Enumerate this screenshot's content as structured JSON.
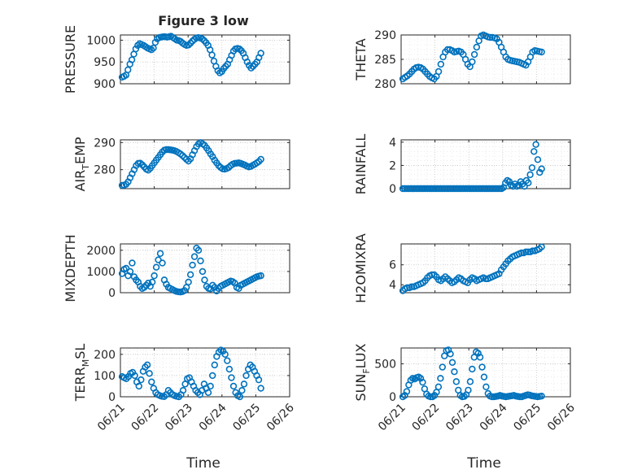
{
  "figure": {
    "title": "Figure 3 low",
    "xlabel": "Time"
  },
  "style": {
    "marker_color": "#0072BD",
    "axis_color": "#262626",
    "grid_color": "#c8c8c8"
  },
  "chart_data": [
    {
      "type": "scatter",
      "name": "PRESSURE",
      "ylabel": "PRESSURE",
      "ylabel_sub": "",
      "xlim": [
        21,
        26
      ],
      "ylim": [
        900,
        1012
      ],
      "yticks": [
        900,
        950,
        1000
      ],
      "x_ticks": [
        "06/21",
        "06/22",
        "06/23",
        "06/24",
        "06/25",
        "06/26"
      ],
      "grid": true,
      "y": [
        915,
        917,
        920,
        932,
        945,
        955,
        968,
        980,
        988,
        992,
        990,
        988,
        985,
        982,
        980,
        978,
        982,
        995,
        1003,
        1006,
        1007,
        1008,
        1008,
        1007,
        1008,
        1009,
        1006,
        1003,
        1000,
        999,
        997,
        993,
        990,
        988,
        989,
        993,
        998,
        1002,
        1005,
        1006,
        1005,
        1003,
        999,
        994,
        988,
        978,
        966,
        952,
        940,
        930,
        925,
        928,
        935,
        940,
        945,
        955,
        965,
        975,
        980,
        981,
        980,
        976,
        970,
        960,
        950,
        942,
        936,
        940,
        945,
        950,
        960,
        970
      ]
    },
    {
      "type": "scatter",
      "name": "THETA",
      "ylabel": "THETA",
      "ylabel_sub": "",
      "xlim": [
        21,
        26
      ],
      "ylim": [
        280,
        290
      ],
      "yticks": [
        280,
        285,
        290
      ],
      "x_ticks": [
        "06/21",
        "06/22",
        "06/23",
        "06/24",
        "06/25",
        "06/26"
      ],
      "grid": true,
      "y": [
        281,
        281.3,
        281.6,
        282,
        282.5,
        283,
        283.3,
        283.4,
        283.3,
        283,
        282.5,
        282,
        281.5,
        281.2,
        281,
        281.5,
        282.5,
        284,
        285.5,
        286.5,
        287,
        287,
        286.8,
        286.5,
        286.6,
        286.7,
        286.5,
        286,
        285,
        284,
        283.5,
        284.5,
        286,
        287.5,
        288.8,
        289.8,
        290,
        289.8,
        289.6,
        289.5,
        289.5,
        289.4,
        289.2,
        288.5,
        287.5,
        286.5,
        285.5,
        285,
        284.8,
        284.7,
        284.6,
        284.5,
        284.4,
        284.2,
        284,
        283.8,
        284.5,
        285.5,
        286.5,
        286.8,
        286.7,
        286.6,
        286.5
      ]
    },
    {
      "type": "scatter",
      "name": "AIR_TEMP",
      "ylabel": "AIR",
      "ylabel_sub": "T",
      "ylabel_tail": "EMP",
      "xlim": [
        21,
        26
      ],
      "ylim": [
        273,
        291
      ],
      "yticks": [
        280,
        290
      ],
      "x_ticks": [
        "06/21",
        "06/22",
        "06/23",
        "06/24",
        "06/25",
        "06/26"
      ],
      "grid": true,
      "y": [
        274.2,
        274.3,
        274.6,
        275.5,
        277,
        278.5,
        280,
        281.5,
        282.3,
        282.4,
        281.8,
        281,
        280.2,
        279.8,
        280.5,
        281.5,
        282.5,
        283.5,
        284.5,
        285.5,
        286.5,
        287.2,
        287.4,
        287.4,
        287.3,
        287.2,
        287,
        286.7,
        286.3,
        285.8,
        285.2,
        284.5,
        283.8,
        283.2,
        284,
        285.5,
        287,
        288.5,
        289.5,
        290,
        289.5,
        289,
        288,
        287,
        285.8,
        284.8,
        283.5,
        282.5,
        281.5,
        280.8,
        280.3,
        280.2,
        280.4,
        280.8,
        281.5,
        282,
        282.3,
        282.4,
        282.5,
        282.3,
        282,
        281.7,
        281.3,
        281,
        281.2,
        281.6,
        282,
        282.5,
        283,
        283.8
      ]
    },
    {
      "type": "scatter",
      "name": "RAINFALL",
      "ylabel": "RAINFALL",
      "ylabel_sub": "",
      "xlim": [
        21,
        26
      ],
      "ylim": [
        0,
        4.2
      ],
      "yticks": [
        0,
        2,
        4
      ],
      "x_ticks": [
        "06/21",
        "06/22",
        "06/23",
        "06/24",
        "06/25",
        "06/26"
      ],
      "grid": true,
      "y": [
        0,
        0,
        0,
        0,
        0,
        0,
        0,
        0,
        0,
        0,
        0,
        0,
        0,
        0,
        0,
        0,
        0,
        0,
        0,
        0,
        0,
        0,
        0,
        0,
        0,
        0,
        0,
        0,
        0,
        0,
        0,
        0,
        0,
        0,
        0,
        0,
        0,
        0,
        0,
        0,
        0,
        0,
        0,
        0,
        0,
        0,
        0,
        0,
        0,
        0,
        0,
        0,
        0,
        0.1,
        0.5,
        0.7,
        0.6,
        0.3,
        0.2,
        0.4,
        0.2,
        0.3,
        0.6,
        0.4,
        0.2,
        0.7,
        0.5,
        1.2,
        1.8,
        3.2,
        3.8,
        2.5,
        1.4,
        1.7
      ]
    },
    {
      "type": "scatter",
      "name": "MIXDEPTH",
      "ylabel": "MIXDEPTH",
      "ylabel_sub": "",
      "xlim": [
        21,
        26
      ],
      "ylim": [
        0,
        2300
      ],
      "yticks": [
        0,
        1000,
        2000
      ],
      "x_ticks": [
        "06/21",
        "06/22",
        "06/23",
        "06/24",
        "06/25",
        "06/26"
      ],
      "grid": true,
      "y": [
        900,
        1100,
        1150,
        800,
        1000,
        1400,
        750,
        600,
        500,
        300,
        200,
        250,
        350,
        450,
        300,
        500,
        800,
        1200,
        1550,
        1850,
        1400,
        600,
        400,
        250,
        200,
        150,
        100,
        60,
        40,
        30,
        50,
        100,
        250,
        500,
        850,
        1300,
        1700,
        2100,
        2000,
        1500,
        1000,
        600,
        300,
        200,
        180,
        350,
        250,
        80,
        200,
        300,
        350,
        400,
        450,
        500,
        550,
        520,
        450,
        250,
        200,
        350,
        400,
        450,
        500,
        550,
        600,
        650,
        700,
        750,
        780,
        800
      ]
    },
    {
      "type": "scatter",
      "name": "H2OMIXRA",
      "ylabel": "H2OMIXRA",
      "ylabel_sub": "",
      "xlim": [
        21,
        26
      ],
      "ylim": [
        3.2,
        8.1
      ],
      "yticks": [
        4,
        6
      ],
      "x_ticks": [
        "06/21",
        "06/22",
        "06/23",
        "06/24",
        "06/25",
        "06/26"
      ],
      "grid": true,
      "y": [
        3.4,
        3.6,
        3.7,
        3.7,
        3.8,
        3.8,
        3.9,
        4,
        4.1,
        4.2,
        4.4,
        4.7,
        4.9,
        5,
        5,
        4.8,
        4.5,
        4.4,
        4.6,
        4.8,
        4.6,
        4.4,
        4.2,
        4.3,
        4.5,
        4.7,
        4.6,
        4.4,
        4.3,
        4.2,
        4.5,
        4.7,
        4.6,
        4.4,
        4.5,
        4.6,
        4.7,
        4.6,
        4.6,
        4.7,
        4.8,
        4.9,
        5,
        5.1,
        5.5,
        5.8,
        6.1,
        6.4,
        6.6,
        6.8,
        6.9,
        7,
        7.1,
        7.2,
        7.2,
        7.3,
        7.3,
        7.3,
        7.4,
        7.4,
        7.5,
        7.6,
        7.8
      ]
    },
    {
      "type": "scatter",
      "name": "TERR_MSL",
      "ylabel": "TERR",
      "ylabel_sub": "M",
      "ylabel_tail": "SL",
      "xlim": [
        21,
        26
      ],
      "ylim": [
        0,
        230
      ],
      "yticks": [
        0,
        100,
        200
      ],
      "x_ticks": [
        "06/21",
        "06/22",
        "06/23",
        "06/24",
        "06/25",
        "06/26"
      ],
      "grid": true,
      "y": [
        95,
        90,
        85,
        95,
        110,
        115,
        100,
        70,
        50,
        80,
        120,
        140,
        150,
        110,
        70,
        40,
        20,
        10,
        5,
        2,
        1,
        10,
        30,
        20,
        10,
        5,
        2,
        0,
        10,
        30,
        60,
        85,
        90,
        70,
        50,
        30,
        20,
        10,
        30,
        60,
        40,
        20,
        50,
        100,
        150,
        190,
        210,
        220,
        215,
        200,
        170,
        130,
        90,
        50,
        20,
        5,
        0,
        30,
        60,
        100,
        130,
        150,
        140,
        120,
        100,
        80,
        40
      ]
    },
    {
      "type": "scatter",
      "name": "SUN_FLUX",
      "ylabel": "SUN",
      "ylabel_sub": "F",
      "ylabel_tail": "LUX",
      "xlim": [
        21,
        26
      ],
      "ylim": [
        0,
        740
      ],
      "yticks": [
        0,
        500
      ],
      "x_ticks": [
        "06/21",
        "06/22",
        "06/23",
        "06/24",
        "06/25",
        "06/26"
      ],
      "grid": true,
      "y": [
        0,
        20,
        80,
        180,
        250,
        280,
        270,
        290,
        300,
        280,
        220,
        120,
        40,
        10,
        0,
        0,
        20,
        70,
        150,
        280,
        450,
        620,
        700,
        710,
        650,
        520,
        380,
        230,
        100,
        20,
        0,
        5,
        30,
        100,
        230,
        420,
        600,
        680,
        660,
        600,
        450,
        300,
        150,
        50,
        10,
        0,
        0,
        5,
        10,
        20,
        10,
        5,
        0,
        5,
        10,
        15,
        20,
        10,
        5,
        0,
        0,
        10,
        20,
        30,
        25,
        15,
        10,
        5,
        0,
        5,
        10
      ]
    }
  ]
}
